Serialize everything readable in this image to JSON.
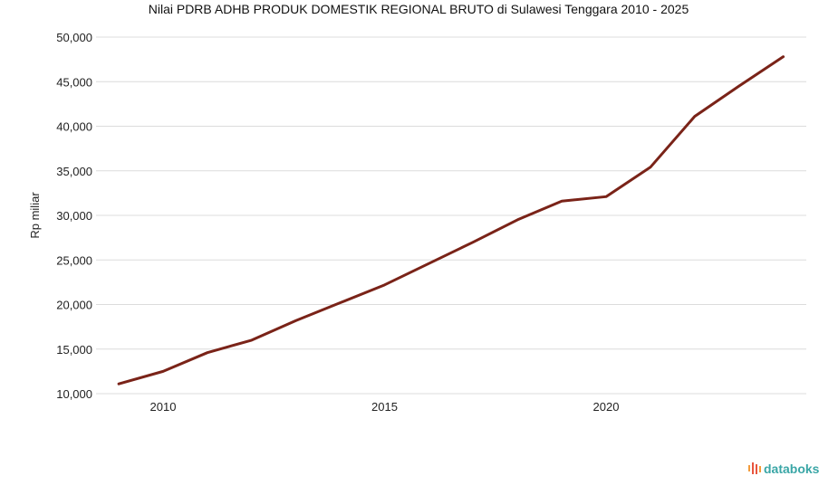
{
  "chart_data": {
    "type": "line",
    "title": "Nilai PDRB ADHB PRODUK DOMESTIK REGIONAL BRUTO di Sulawesi Tenggara 2010 - 2025",
    "ylabel": "Rp miliar",
    "xlabel": "",
    "x": [
      2010,
      2011,
      2012,
      2013,
      2014,
      2015,
      2016,
      2017,
      2018,
      2019,
      2020,
      2021,
      2022,
      2023,
      2024,
      2025
    ],
    "series": [
      {
        "name": "",
        "color": "#7a2318",
        "values": [
          11100,
          12500,
          14600,
          16000,
          18200,
          20200,
          22200,
          24600,
          27000,
          29500,
          31600,
          32100,
          35400,
          41100,
          44500,
          47800
        ]
      }
    ],
    "ylim": [
      10000,
      50000
    ],
    "yticks": [
      "10,000",
      "15,000",
      "20,000",
      "25,000",
      "30,000",
      "35,000",
      "40,000",
      "45,000",
      "50,000"
    ],
    "ytick_values": [
      10000,
      15000,
      20000,
      25000,
      30000,
      35000,
      40000,
      45000,
      50000
    ],
    "xticks": [
      "2010",
      "2015",
      "2020"
    ],
    "xtick_values": [
      2010,
      2015,
      2020
    ],
    "grid": true,
    "legend": "none"
  },
  "brand": {
    "name": "databoks",
    "color": "#3aa6a6",
    "icon": "databoks-logo-icon"
  }
}
